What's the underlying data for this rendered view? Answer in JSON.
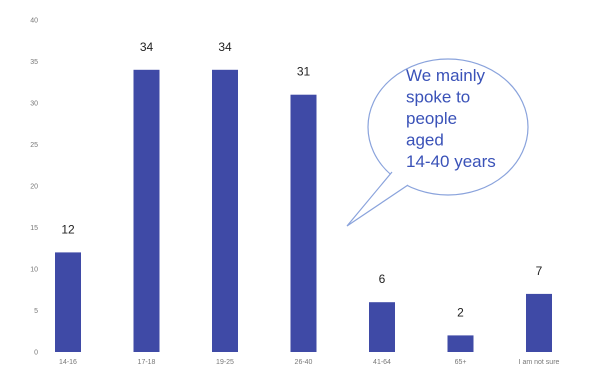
{
  "chart_data": {
    "type": "bar",
    "categories": [
      "14-16",
      "17-18",
      "19-25",
      "26-40",
      "41-64",
      "65+",
      "I am not sure"
    ],
    "values": [
      12,
      34,
      34,
      31,
      6,
      2,
      7
    ],
    "title": "",
    "xlabel": "",
    "ylabel": "",
    "ylim": [
      0,
      40
    ],
    "yticks": [
      0,
      5,
      10,
      15,
      20,
      25,
      30,
      35,
      40
    ],
    "grid": false,
    "legend": "none",
    "bar_color": "#3f4aa6",
    "data_labels": true,
    "annotation": {
      "lines": [
        "We mainly",
        "spoke to",
        "people",
        "aged",
        "14-40 years"
      ],
      "color": "#3a52b8",
      "shape": "speech-bubble"
    }
  }
}
